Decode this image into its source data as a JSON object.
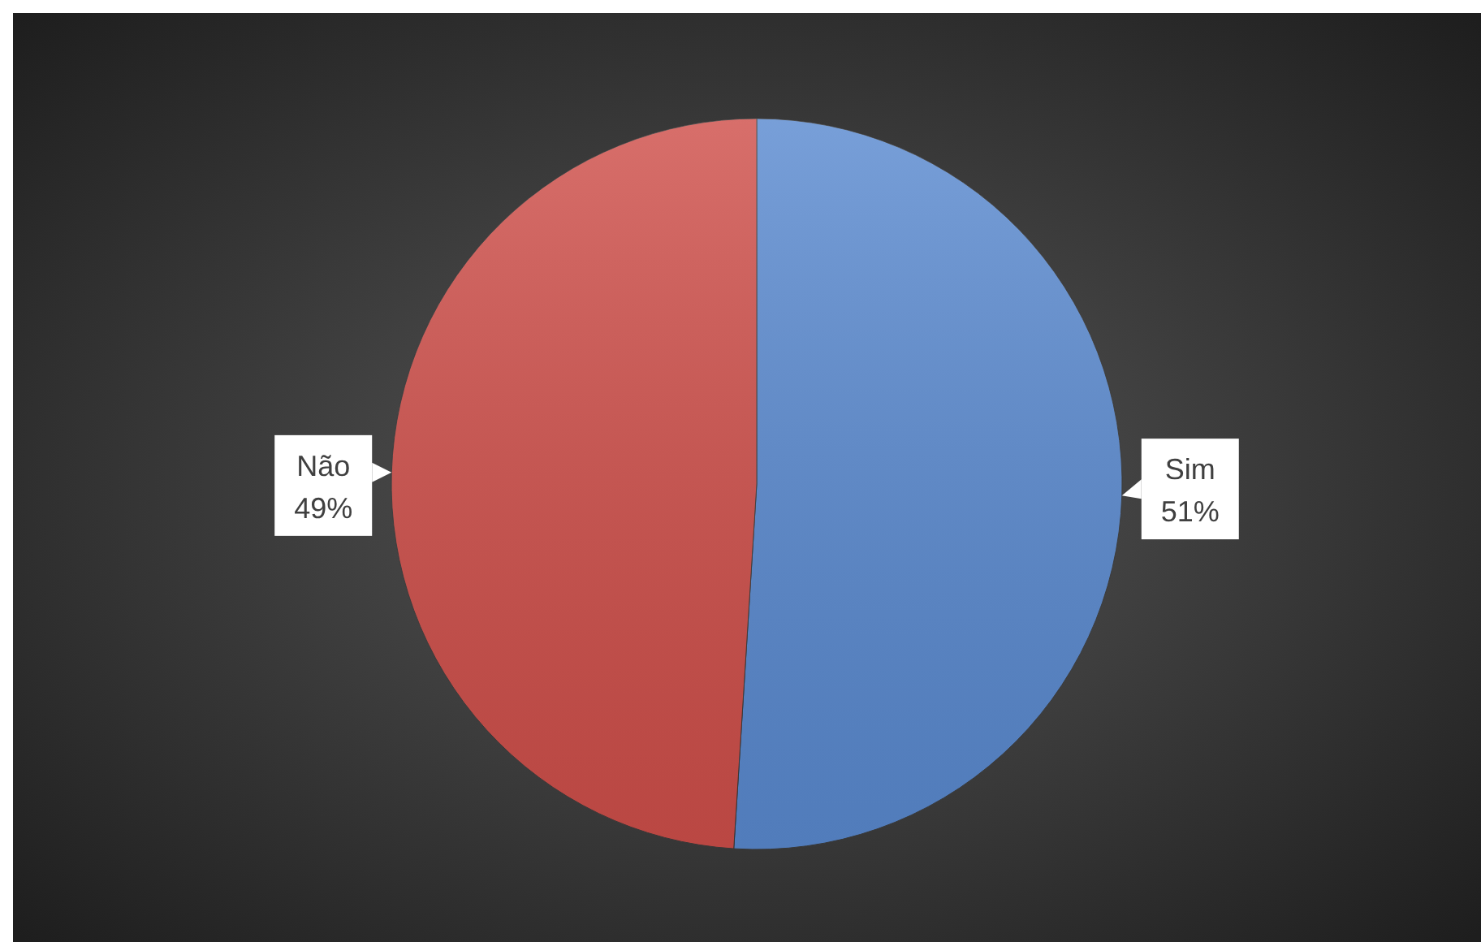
{
  "chart_data": {
    "type": "pie",
    "categories": [
      "Sim",
      "Não"
    ],
    "values": [
      51,
      49
    ],
    "colors": [
      "#5a8ad0",
      "#cf4f4a"
    ],
    "value_labels": [
      "51%",
      "49%"
    ]
  }
}
